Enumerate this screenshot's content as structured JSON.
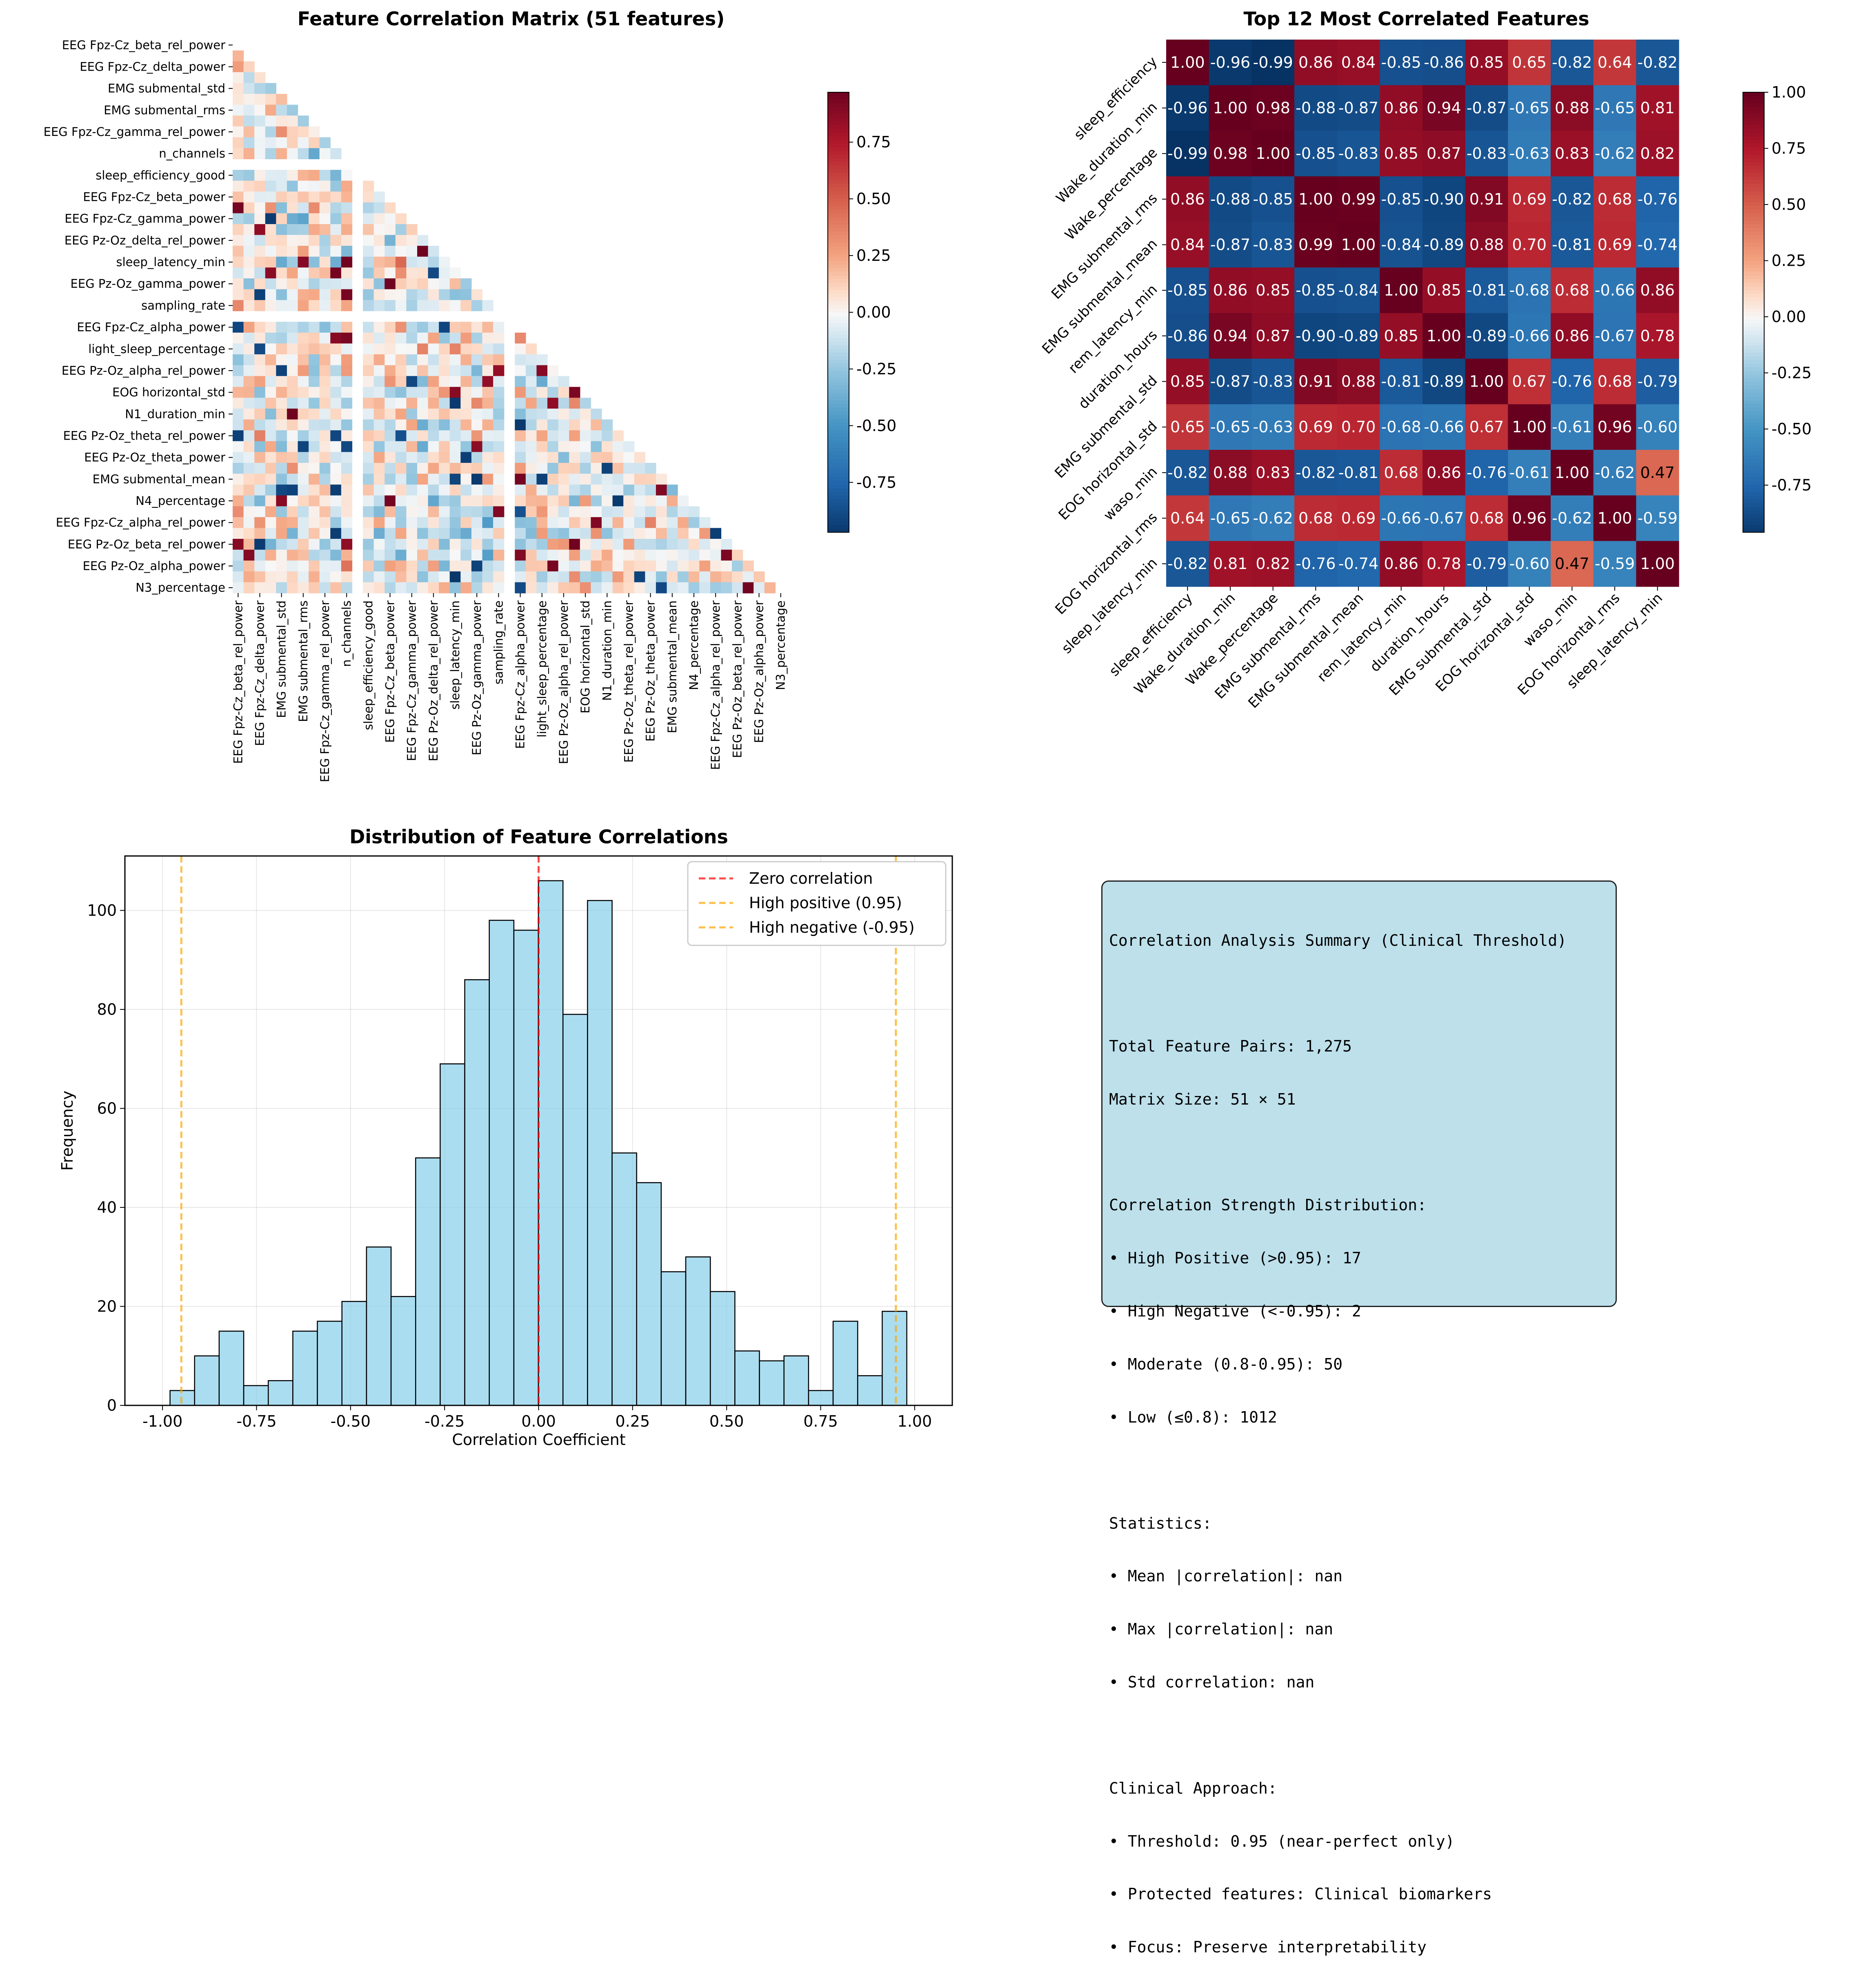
{
  "colorbar_ticks_a": [
    "0.75",
    "0.50",
    "0.25",
    "0.00",
    "-0.25",
    "-0.50",
    "-0.75"
  ],
  "colorbar_ticks_b": [
    "1.00",
    "0.75",
    "0.50",
    "0.25",
    "0.00",
    "-0.25",
    "-0.50",
    "-0.75"
  ],
  "colors": {
    "bar_fill": "#87ceeb",
    "zero_line": "#ff0000",
    "threshold_line": "#ffa500",
    "box_fill": "#add8e6"
  },
  "summary": {
    "lines": [
      "Correlation Analysis Summary (Clinical Threshold)",
      "",
      "Total Feature Pairs: 1,275",
      "Matrix Size: 51 × 51",
      "",
      "Correlation Strength Distribution:",
      "• High Positive (>0.95): 17",
      "• High Negative (<-0.95): 2",
      "• Moderate (0.8-0.95): 50",
      "• Low (≤0.8): 1012",
      "",
      "Statistics:",
      "• Mean |correlation|: nan",
      "• Max |correlation|: nan",
      "• Std correlation: nan",
      "",
      "Clinical Approach:",
      "• Threshold: 0.95 (near-perfect only)",
      "• Protected features: Clinical biomarkers",
      "• Focus: Preserve interpretability"
    ]
  },
  "chart_data": [
    {
      "type": "heatmap",
      "title": "Feature Correlation Matrix (51 features)",
      "n": 51,
      "mask": "upper triangle incl. diagonal",
      "ytick_labels": [
        "EEG Fpz-Cz_beta_rel_power",
        "EEG Fpz-Cz_delta_power",
        "EMG submental_std",
        "EMG submental_rms",
        "EEG Fpz-Cz_gamma_rel_power",
        "n_channels",
        "sleep_efficiency_good",
        "EEG Fpz-Cz_beta_power",
        "EEG Fpz-Cz_gamma_power",
        "EEG Pz-Oz_delta_rel_power",
        "sleep_latency_min",
        "EEG Pz-Oz_gamma_power",
        "sampling_rate",
        "EEG Fpz-Cz_alpha_power",
        "light_sleep_percentage",
        "EEG Pz-Oz_alpha_rel_power",
        "EOG horizontal_std",
        "N1_duration_min",
        "EEG Pz-Oz_theta_rel_power",
        "EEG Pz-Oz_theta_power",
        "EMG submental_mean",
        "N4_percentage",
        "EEG Fpz-Cz_alpha_rel_power",
        "EEG Pz-Oz_beta_rel_power",
        "EEG Pz-Oz_alpha_power",
        "N3_percentage"
      ],
      "xtick_labels": [
        "EEG Fpz-Cz_beta_rel_power",
        "EEG Fpz-Cz_delta_power",
        "EMG submental_std",
        "EMG submental_rms",
        "EEG Fpz-Cz_gamma_rel_power",
        "n_channels",
        "sleep_efficiency_good",
        "EEG Fpz-Cz_beta_power",
        "EEG Fpz-Cz_gamma_power",
        "EEG Pz-Oz_delta_rel_power",
        "sleep_latency_min",
        "EEG Pz-Oz_gamma_power",
        "sampling_rate",
        "EEG Fpz-Cz_alpha_power",
        "light_sleep_percentage",
        "EEG Pz-Oz_alpha_rel_power",
        "EOG horizontal_std",
        "N1_duration_min",
        "EEG Pz-Oz_theta_rel_power",
        "EEG Pz-Oz_theta_power",
        "EMG submental_mean",
        "N4_percentage",
        "EEG Fpz-Cz_alpha_rel_power",
        "EEG Pz-Oz_beta_rel_power",
        "EEG Pz-Oz_alpha_power",
        "N3_percentage"
      ],
      "empty_rows": [
        5,
        12
      ],
      "color_range": [
        -0.97,
        0.97
      ]
    },
    {
      "type": "heatmap",
      "title": "Top 12 Most Correlated Features",
      "labels": [
        "sleep_efficiency",
        "Wake_duration_min",
        "Wake_percentage",
        "EMG submental_rms",
        "EMG submental_mean",
        "rem_latency_min",
        "duration_hours",
        "EMG submental_std",
        "EOG horizontal_std",
        "waso_min",
        "EOG horizontal_rms",
        "sleep_latency_min"
      ],
      "color_range": [
        -1,
        1
      ],
      "values": [
        [
          1.0,
          -0.96,
          -0.99,
          0.86,
          0.84,
          -0.85,
          -0.86,
          0.85,
          0.65,
          -0.82,
          0.64,
          -0.82
        ],
        [
          -0.96,
          1.0,
          0.98,
          -0.88,
          -0.87,
          0.86,
          0.94,
          -0.87,
          -0.65,
          0.88,
          -0.65,
          0.81
        ],
        [
          -0.99,
          0.98,
          1.0,
          -0.85,
          -0.83,
          0.85,
          0.87,
          -0.83,
          -0.63,
          0.83,
          -0.62,
          0.82
        ],
        [
          0.86,
          -0.88,
          -0.85,
          1.0,
          0.99,
          -0.85,
          -0.9,
          0.91,
          0.69,
          -0.82,
          0.68,
          -0.76
        ],
        [
          0.84,
          -0.87,
          -0.83,
          0.99,
          1.0,
          -0.84,
          -0.89,
          0.88,
          0.7,
          -0.81,
          0.69,
          -0.74
        ],
        [
          -0.85,
          0.86,
          0.85,
          -0.85,
          -0.84,
          1.0,
          0.85,
          -0.81,
          -0.68,
          0.68,
          -0.66,
          0.86
        ],
        [
          -0.86,
          0.94,
          0.87,
          -0.9,
          -0.89,
          0.85,
          1.0,
          -0.89,
          -0.66,
          0.86,
          -0.67,
          0.78
        ],
        [
          0.85,
          -0.87,
          -0.83,
          0.91,
          0.88,
          -0.81,
          -0.89,
          1.0,
          0.67,
          -0.76,
          0.68,
          -0.79
        ],
        [
          0.65,
          -0.65,
          -0.63,
          0.69,
          0.7,
          -0.68,
          -0.66,
          0.67,
          1.0,
          -0.61,
          0.96,
          -0.6
        ],
        [
          -0.82,
          0.88,
          0.83,
          -0.82,
          -0.81,
          0.68,
          0.86,
          -0.76,
          -0.61,
          1.0,
          -0.62,
          0.47
        ],
        [
          0.64,
          -0.65,
          -0.62,
          0.68,
          0.69,
          -0.66,
          -0.67,
          0.68,
          0.96,
          -0.62,
          1.0,
          -0.59
        ],
        [
          -0.82,
          0.81,
          0.82,
          -0.76,
          -0.74,
          0.86,
          0.78,
          -0.79,
          -0.6,
          0.47,
          -0.59,
          1.0
        ]
      ]
    },
    {
      "type": "bar",
      "title": "Distribution of Feature Correlations",
      "xlabel": "Correlation Coefficient",
      "ylabel": "Frequency",
      "xlim": [
        -1.1,
        1.1
      ],
      "ylim": [
        0,
        111
      ],
      "xticks": [
        "-1.00",
        "-0.75",
        "-0.50",
        "-0.25",
        "0.00",
        "0.25",
        "0.50",
        "0.75",
        "1.00"
      ],
      "yticks": [
        "0",
        "20",
        "40",
        "60",
        "80",
        "100"
      ],
      "bin_start": -0.98,
      "bin_width": 0.0653,
      "counts": [
        3,
        10,
        15,
        4,
        5,
        15,
        17,
        21,
        32,
        22,
        50,
        69,
        86,
        98,
        96,
        106,
        79,
        102,
        51,
        45,
        27,
        30,
        23,
        11,
        9,
        10,
        3,
        17,
        6,
        19
      ],
      "legend": [
        "Zero correlation",
        "High positive (0.95)",
        "High negative (-0.95)"
      ],
      "vlines": [
        0.0,
        0.95,
        -0.95
      ],
      "grid": true,
      "legend_position": "top-right"
    }
  ]
}
